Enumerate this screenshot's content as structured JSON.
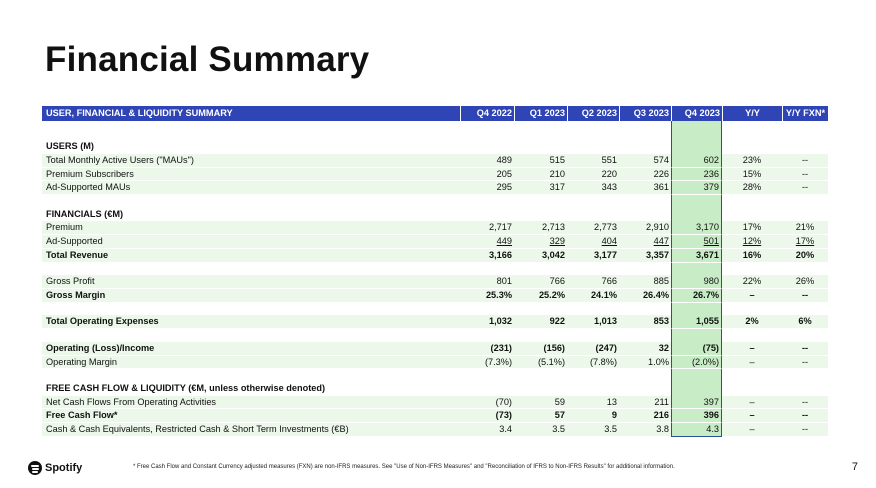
{
  "title": "Financial Summary",
  "table": {
    "headers": [
      "USER, FINANCIAL & LIQUIDITY SUMMARY",
      "Q4 2022",
      "Q1 2023",
      "Q2 2023",
      "Q3 2023",
      "Q4 2023",
      "Y/Y",
      "Y/Y FXN*"
    ],
    "rows": [
      {
        "type": "spacer2"
      },
      {
        "type": "section",
        "label": "USERS (M)"
      },
      {
        "type": "data",
        "label": "Total Monthly Active Users (\"MAUs\")",
        "values": [
          "489",
          "515",
          "551",
          "574",
          "602",
          "23%",
          "--"
        ]
      },
      {
        "type": "data",
        "label": "Premium Subscribers",
        "values": [
          "205",
          "210",
          "220",
          "226",
          "236",
          "15%",
          "--"
        ]
      },
      {
        "type": "data",
        "label": "Ad-Supported MAUs",
        "values": [
          "295",
          "317",
          "343",
          "361",
          "379",
          "28%",
          "--"
        ]
      },
      {
        "type": "spacer"
      },
      {
        "type": "section",
        "label": "FINANCIALS (€M)"
      },
      {
        "type": "data",
        "label": "Premium",
        "values": [
          "2,717",
          "2,713",
          "2,773",
          "2,910",
          "3,170",
          "17%",
          "21%"
        ]
      },
      {
        "type": "data",
        "label": "Ad-Supported",
        "underline": true,
        "values": [
          "449",
          "329",
          "404",
          "447",
          "501",
          "12%",
          "17%"
        ]
      },
      {
        "type": "data",
        "label": "Total Revenue",
        "bold": true,
        "values": [
          "3,166",
          "3,042",
          "3,177",
          "3,357",
          "3,671",
          "16%",
          "20%"
        ]
      },
      {
        "type": "spacer"
      },
      {
        "type": "data",
        "label": "Gross Profit",
        "values": [
          "801",
          "766",
          "766",
          "885",
          "980",
          "22%",
          "26%"
        ]
      },
      {
        "type": "data",
        "label": "Gross Margin",
        "bold": true,
        "values": [
          "25.3%",
          "25.2%",
          "24.1%",
          "26.4%",
          "26.7%",
          "–",
          "--"
        ]
      },
      {
        "type": "spacer"
      },
      {
        "type": "data",
        "label": "Total Operating Expenses",
        "bold": true,
        "values": [
          "1,032",
          "922",
          "1,013",
          "853",
          "1,055",
          "2%",
          "6%"
        ]
      },
      {
        "type": "spacer"
      },
      {
        "type": "data",
        "label": "Operating (Loss)/Income",
        "bold": true,
        "values": [
          "(231)",
          "(156)",
          "(247)",
          "32",
          "(75)",
          "–",
          "--"
        ]
      },
      {
        "type": "data",
        "label": "Operating Margin",
        "values": [
          "(7.3%)",
          "(5.1%)",
          "(7.8%)",
          "1.0%",
          "(2.0%)",
          "–",
          "--"
        ]
      },
      {
        "type": "spacer"
      },
      {
        "type": "section",
        "label": "FREE CASH FLOW & LIQUIDITY (€M, unless otherwise denoted)"
      },
      {
        "type": "data",
        "label": "Net Cash Flows From Operating Activities",
        "values": [
          "(70)",
          "59",
          "13",
          "211",
          "397",
          "–",
          "--"
        ]
      },
      {
        "type": "data",
        "label": "Free Cash Flow*",
        "bold": true,
        "values": [
          "(73)",
          "57",
          "9",
          "216",
          "396",
          "–",
          "--"
        ]
      },
      {
        "type": "data",
        "label": "Cash & Cash Equivalents, Restricted Cash & Short Term Investments (€B)",
        "last": true,
        "values": [
          "3.4",
          "3.5",
          "3.5",
          "3.8",
          "4.3",
          "–",
          "--"
        ]
      }
    ]
  },
  "footer": {
    "logo": "Spotify",
    "note": "* Free Cash Flow and Constant Currency adjusted measures (FXN) are non-IFRS measures. See \"Use of Non-IFRS Measures\" and \"Reconciliation of IFRS to Non-IFRS Results\" for additional information.",
    "page": "7"
  }
}
